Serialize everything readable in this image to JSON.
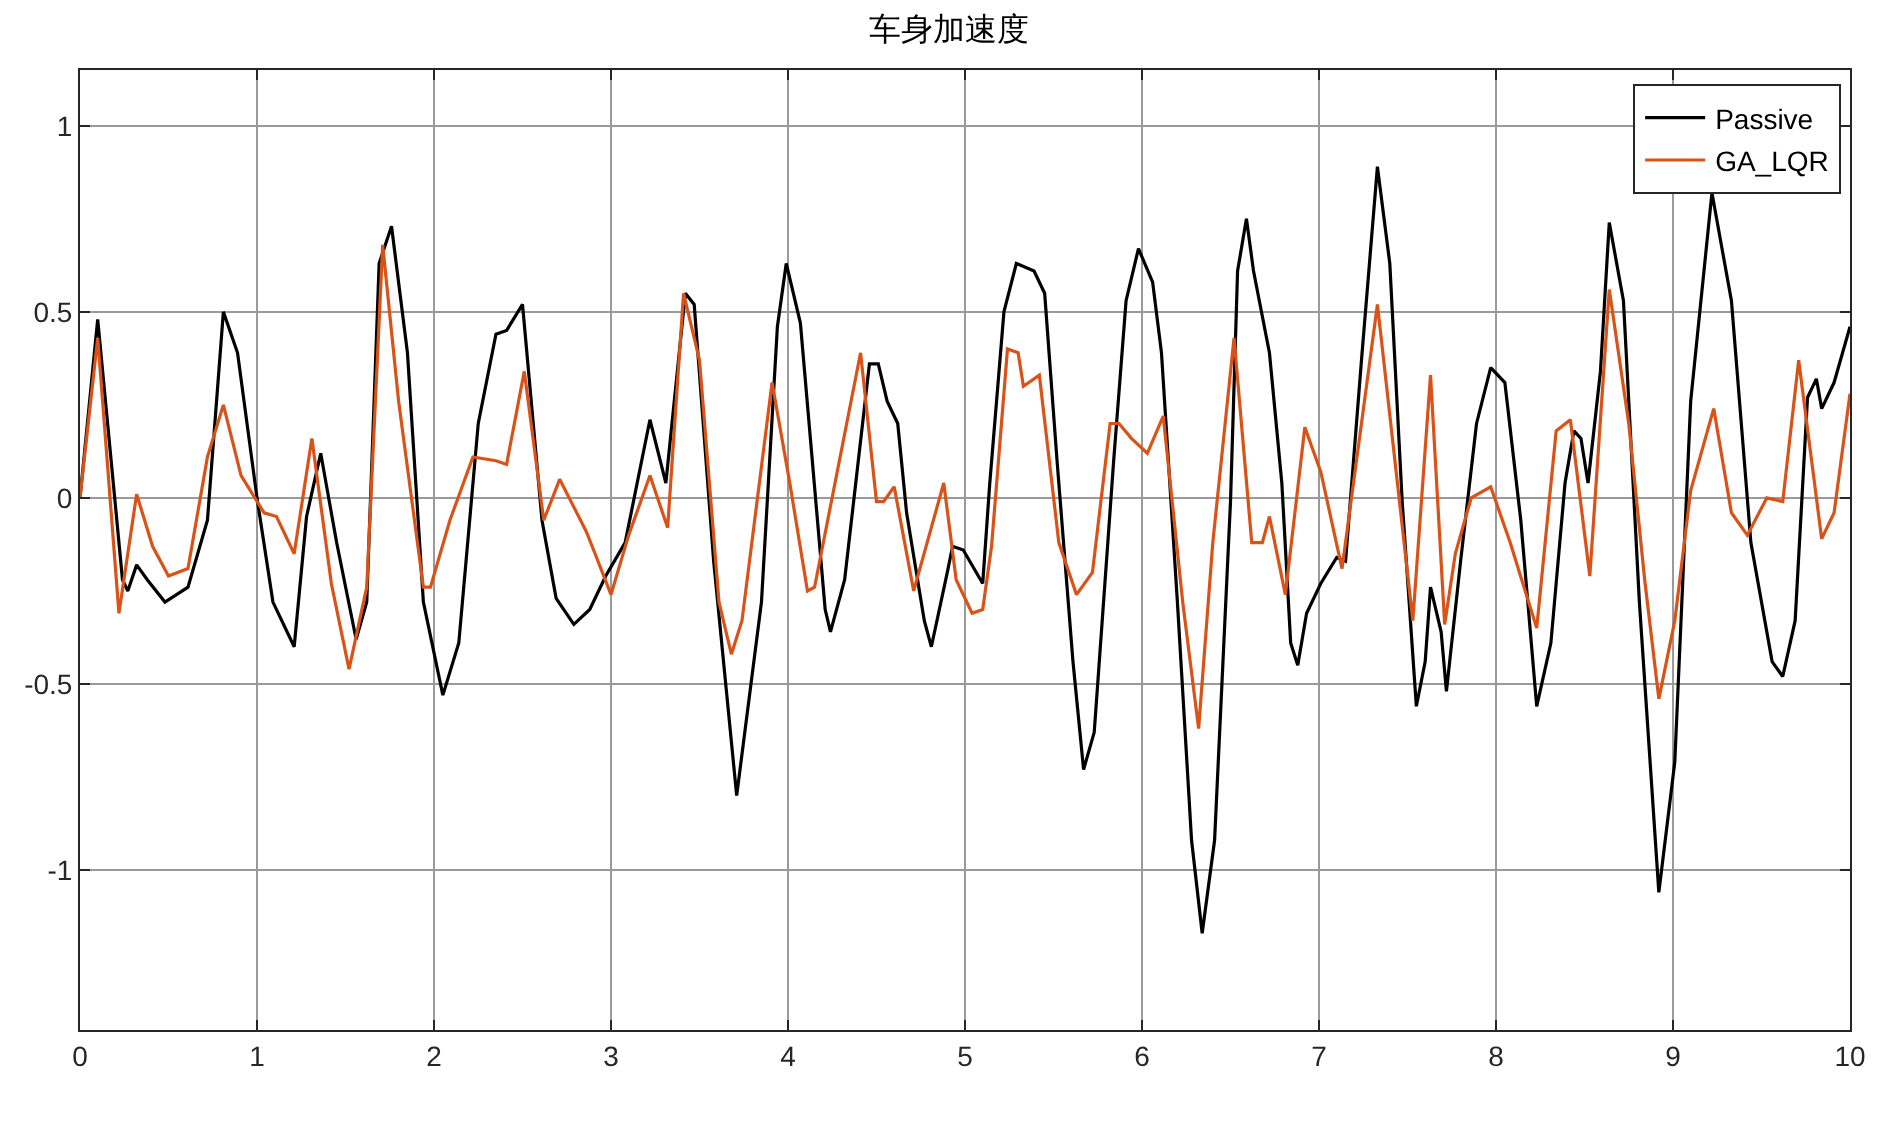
{
  "chart_data": {
    "type": "line",
    "title": "车身加速度",
    "xlim": [
      0,
      10
    ],
    "xticks": [
      0,
      1,
      2,
      3,
      4,
      5,
      6,
      7,
      8,
      9,
      10
    ],
    "ylim": [
      -1.43,
      1.15
    ],
    "yticks": [
      -1,
      -0.5,
      0,
      0.5,
      1
    ],
    "grid": true,
    "legend": "top right",
    "line_style": "solid",
    "series": [
      {
        "name": "Passive",
        "color": "#000000",
        "x": [
          0,
          0.1,
          0.24,
          0.27,
          0.32,
          0.38,
          0.48,
          0.61,
          0.72,
          0.81,
          0.89,
          1.0,
          1.09,
          1.21,
          1.28,
          1.36,
          1.45,
          1.56,
          1.62,
          1.69,
          1.76,
          1.85,
          1.94,
          2.05,
          2.14,
          2.25,
          2.35,
          2.41,
          2.5,
          2.61,
          2.69,
          2.79,
          2.88,
          2.97,
          3.08,
          3.22,
          3.31,
          3.42,
          3.47,
          3.58,
          3.71,
          3.85,
          3.94,
          3.99,
          4.07,
          4.21,
          4.24,
          4.32,
          4.46,
          4.51,
          4.56,
          4.62,
          4.67,
          4.77,
          4.81,
          4.9,
          4.93,
          4.99,
          5.1,
          5.14,
          5.22,
          5.29,
          5.39,
          5.45,
          5.52,
          5.61,
          5.67,
          5.73,
          5.84,
          5.91,
          5.98,
          6.06,
          6.11,
          6.2,
          6.28,
          6.34,
          6.41,
          6.5,
          6.54,
          6.59,
          6.63,
          6.72,
          6.79,
          6.84,
          6.88,
          6.93,
          7.01,
          7.1,
          7.15,
          7.24,
          7.33,
          7.4,
          7.47,
          7.55,
          7.6,
          7.63,
          7.69,
          7.72,
          7.8,
          7.89,
          7.97,
          8.05,
          8.14,
          8.23,
          8.31,
          8.39,
          8.44,
          8.48,
          8.52,
          8.59,
          8.64,
          8.72,
          8.81,
          8.92,
          9.01,
          9.1,
          9.22,
          9.33,
          9.44,
          9.56,
          9.62,
          9.69,
          9.76,
          9.81,
          9.84,
          9.91,
          10
        ],
        "values": [
          0,
          0.48,
          -0.22,
          -0.25,
          -0.18,
          -0.22,
          -0.28,
          -0.24,
          -0.06,
          0.5,
          0.39,
          0,
          -0.28,
          -0.4,
          -0.05,
          0.12,
          -0.12,
          -0.38,
          -0.28,
          0.63,
          0.73,
          0.39,
          -0.28,
          -0.53,
          -0.39,
          0.2,
          0.44,
          0.45,
          0.52,
          -0.06,
          -0.27,
          -0.34,
          -0.3,
          -0.21,
          -0.12,
          0.21,
          0.04,
          0.55,
          0.52,
          -0.17,
          -0.8,
          -0.28,
          0.46,
          0.63,
          0.47,
          -0.3,
          -0.36,
          -0.22,
          0.36,
          0.36,
          0.26,
          0.2,
          -0.04,
          -0.33,
          -0.4,
          -0.2,
          -0.13,
          -0.14,
          -0.23,
          0.04,
          0.5,
          0.63,
          0.61,
          0.55,
          0.1,
          -0.44,
          -0.73,
          -0.63,
          0.1,
          0.53,
          0.67,
          0.58,
          0.39,
          -0.28,
          -0.92,
          -1.17,
          -0.92,
          -0.01,
          0.61,
          0.75,
          0.61,
          0.39,
          0.04,
          -0.39,
          -0.45,
          -0.31,
          -0.23,
          -0.16,
          -0.17,
          0.37,
          0.89,
          0.63,
          -0.01,
          -0.56,
          -0.44,
          -0.24,
          -0.36,
          -0.52,
          -0.17,
          0.2,
          0.35,
          0.31,
          -0.06,
          -0.56,
          -0.39,
          0.04,
          0.18,
          0.16,
          0.04,
          0.34,
          0.74,
          0.53,
          -0.28,
          -1.06,
          -0.71,
          0.26,
          0.82,
          0.53,
          -0.12,
          -0.44,
          -0.48,
          -0.33,
          0.27,
          0.32,
          0.24,
          0.31,
          0.46
        ]
      },
      {
        "name": "GA_LQR",
        "color": "#d95319",
        "x": [
          0,
          0.1,
          0.22,
          0.32,
          0.41,
          0.5,
          0.61,
          0.72,
          0.81,
          0.91,
          1.04,
          1.11,
          1.21,
          1.31,
          1.42,
          1.52,
          1.62,
          1.71,
          1.8,
          1.94,
          1.98,
          2.09,
          2.22,
          2.35,
          2.41,
          2.51,
          2.62,
          2.71,
          2.86,
          2.91,
          3.0,
          3.1,
          3.22,
          3.32,
          3.41,
          3.5,
          3.61,
          3.68,
          3.74,
          3.91,
          4.01,
          4.11,
          4.15,
          4.41,
          4.5,
          4.54,
          4.6,
          4.71,
          4.88,
          4.95,
          5.04,
          5.1,
          5.15,
          5.24,
          5.3,
          5.33,
          5.42,
          5.53,
          5.63,
          5.72,
          5.82,
          5.87,
          5.94,
          6.03,
          6.12,
          6.23,
          6.32,
          6.4,
          6.52,
          6.62,
          6.68,
          6.72,
          6.81,
          6.92,
          7.01,
          7.13,
          7.33,
          7.53,
          7.63,
          7.71,
          7.77,
          7.86,
          7.97,
          8.08,
          8.23,
          8.34,
          8.42,
          8.53,
          8.64,
          8.75,
          8.84,
          8.92,
          9.01,
          9.1,
          9.23,
          9.33,
          9.42,
          9.53,
          9.62,
          9.71,
          9.84,
          9.91,
          10
        ],
        "values": [
          0,
          0.43,
          -0.31,
          0.01,
          -0.13,
          -0.21,
          -0.19,
          0.11,
          0.25,
          0.06,
          -0.04,
          -0.05,
          -0.15,
          0.16,
          -0.23,
          -0.46,
          -0.24,
          0.68,
          0.26,
          -0.24,
          -0.24,
          -0.06,
          0.11,
          0.1,
          0.09,
          0.34,
          -0.06,
          0.05,
          -0.09,
          -0.15,
          -0.26,
          -0.1,
          0.06,
          -0.08,
          0.55,
          0.37,
          -0.28,
          -0.42,
          -0.33,
          0.31,
          0.04,
          -0.25,
          -0.24,
          0.39,
          -0.01,
          -0.01,
          0.03,
          -0.25,
          0.04,
          -0.22,
          -0.31,
          -0.3,
          -0.13,
          0.4,
          0.39,
          0.3,
          0.33,
          -0.12,
          -0.26,
          -0.2,
          0.2,
          0.2,
          0.16,
          0.12,
          0.22,
          -0.28,
          -0.62,
          -0.12,
          0.43,
          -0.12,
          -0.12,
          -0.05,
          -0.26,
          0.19,
          0.07,
          -0.19,
          0.52,
          -0.33,
          0.33,
          -0.34,
          -0.15,
          0,
          0.03,
          -0.12,
          -0.35,
          0.18,
          0.21,
          -0.21,
          0.56,
          0.2,
          -0.22,
          -0.54,
          -0.33,
          0.02,
          0.24,
          -0.04,
          -0.1,
          0,
          -0.01,
          0.37,
          -0.11,
          -0.04,
          0.28
        ]
      }
    ]
  }
}
